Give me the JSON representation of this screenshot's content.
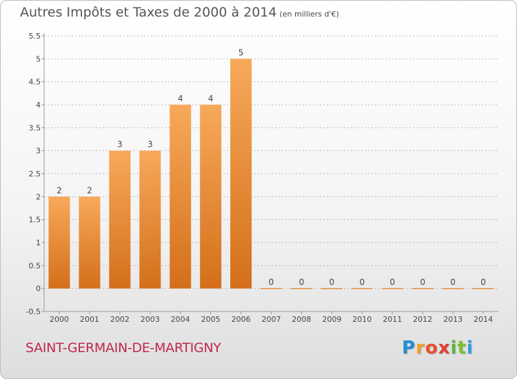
{
  "title": "Autres Impôts et Taxes de 2000 à 2014",
  "unit": "(en milliers d'€)",
  "commune": "SAINT-GERMAIN-DE-MARTIGNY",
  "brand": "Proxiti",
  "colors": {
    "bar_light": "#f7a95a",
    "bar_dark": "#d46f1a",
    "axis": "#999999",
    "grid": "#b8b8b8",
    "title": "#555555",
    "commune": "#c0284b"
  },
  "chart_data": {
    "type": "bar",
    "title": "Autres Impôts et Taxes de 2000 à 2014",
    "subtitle": "(en milliers d'€)",
    "categories": [
      "2000",
      "2001",
      "2002",
      "2003",
      "2004",
      "2005",
      "2006",
      "2007",
      "2008",
      "2009",
      "2010",
      "2011",
      "2012",
      "2013",
      "2014"
    ],
    "values": [
      2,
      2,
      3,
      3,
      4,
      4,
      5,
      0,
      0,
      0,
      0,
      0,
      0,
      0,
      0
    ],
    "data_labels": [
      "2",
      "2",
      "3",
      "3",
      "4",
      "4",
      "5",
      "0",
      "0",
      "0",
      "0",
      "0",
      "0",
      "0",
      "0"
    ],
    "y_ticks": [
      "-0.5",
      "0",
      "0.5",
      "1",
      "1.5",
      "2",
      "2.5",
      "3",
      "3.5",
      "4",
      "4.5",
      "5",
      "5.5"
    ],
    "ylim": [
      -0.5,
      5.5
    ],
    "xlabel": "",
    "ylabel": "",
    "grid": true,
    "legend": "none"
  }
}
